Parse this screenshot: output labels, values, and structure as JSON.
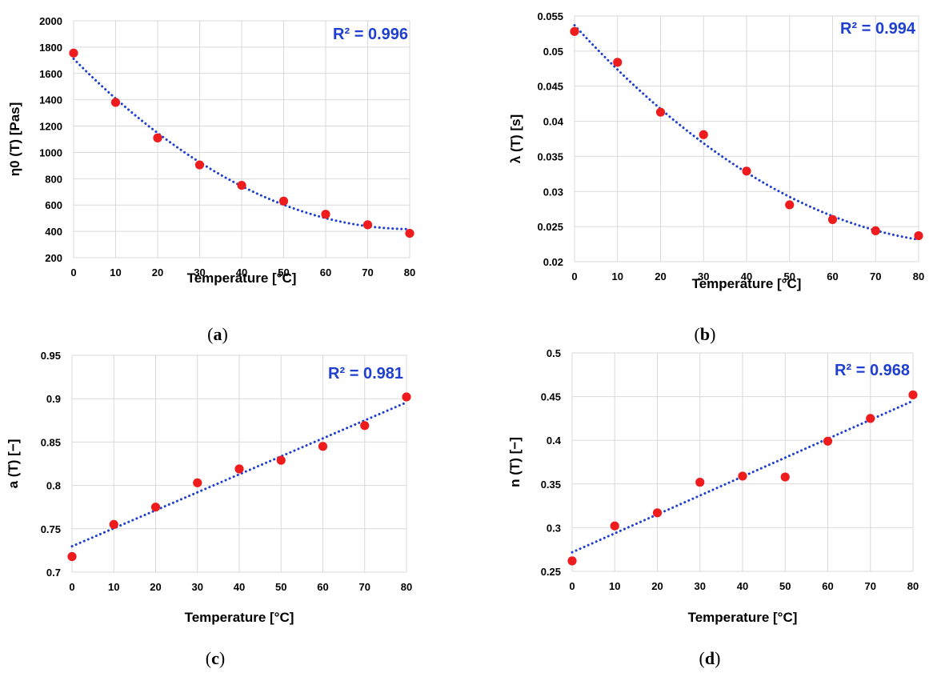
{
  "colors": {
    "marker": "#ee1c1c",
    "trend": "#1f3fd0",
    "r2_text": "#1f3fd0",
    "grid": "#d9d9d9"
  },
  "chart_data": [
    {
      "type": "scatter",
      "panel": "a",
      "xlabel": "Temperature [°C]",
      "ylabel": "η0 (T) [Pas]",
      "xlim": [
        0,
        80
      ],
      "ylim": [
        200,
        2000
      ],
      "xticks": [
        "0",
        "10",
        "20",
        "30",
        "40",
        "50",
        "60",
        "70",
        "80"
      ],
      "yticks": [
        "200",
        "400",
        "600",
        "800",
        "1000",
        "1200",
        "1400",
        "1600",
        "1800",
        "2000"
      ],
      "x": [
        0,
        10,
        20,
        30,
        40,
        50,
        60,
        70,
        80
      ],
      "y": [
        1755,
        1380,
        1110,
        905,
        750,
        630,
        530,
        450,
        385
      ],
      "trendline": "polynomial-2",
      "annotation": "R² = 0.996",
      "grid": true
    },
    {
      "type": "scatter",
      "panel": "b",
      "xlabel": "Temperature [°C]",
      "ylabel": "λ (T) [s]",
      "xlim": [
        0,
        80
      ],
      "ylim": [
        0.02,
        0.055
      ],
      "xticks": [
        "0",
        "10",
        "20",
        "30",
        "40",
        "50",
        "60",
        "70",
        "80"
      ],
      "yticks": [
        "0.02",
        "0.025",
        "0.03",
        "0.035",
        "0.04",
        "0.045",
        "0.05",
        "0.055"
      ],
      "x": [
        0,
        10,
        20,
        30,
        40,
        50,
        60,
        70,
        80
      ],
      "y": [
        0.0528,
        0.0484,
        0.0413,
        0.0381,
        0.0329,
        0.0281,
        0.026,
        0.0244,
        0.0237
      ],
      "trendline": "polynomial-2",
      "annotation": "R² = 0.994",
      "grid": true
    },
    {
      "type": "scatter",
      "panel": "c",
      "xlabel": "Temperature [°C]",
      "ylabel": "a (T) [−]",
      "xlim": [
        0,
        80
      ],
      "ylim": [
        0.7,
        0.95
      ],
      "xticks": [
        "0",
        "10",
        "20",
        "30",
        "40",
        "50",
        "60",
        "70",
        "80"
      ],
      "yticks": [
        "0.7",
        "0.75",
        "0.8",
        "0.85",
        "0.9",
        "0.95"
      ],
      "x": [
        0,
        10,
        20,
        30,
        40,
        50,
        60,
        70,
        80
      ],
      "y": [
        0.718,
        0.755,
        0.775,
        0.803,
        0.819,
        0.829,
        0.845,
        0.869,
        0.902
      ],
      "trendline": "linear",
      "annotation": "R² = 0.981",
      "grid": true
    },
    {
      "type": "scatter",
      "panel": "d",
      "xlabel": "Temperature [°C]",
      "ylabel": "n (T) [−]",
      "xlim": [
        0,
        80
      ],
      "ylim": [
        0.25,
        0.5
      ],
      "xticks": [
        "0",
        "10",
        "20",
        "30",
        "40",
        "50",
        "60",
        "70",
        "80"
      ],
      "yticks": [
        "0.25",
        "0.3",
        "0.35",
        "0.4",
        "0.45",
        "0.5"
      ],
      "x": [
        0,
        10,
        20,
        30,
        40,
        50,
        60,
        70,
        80
      ],
      "y": [
        0.262,
        0.302,
        0.317,
        0.352,
        0.359,
        0.358,
        0.399,
        0.425,
        0.452
      ],
      "trendline": "linear",
      "annotation": "R² = 0.968",
      "grid": true
    }
  ]
}
